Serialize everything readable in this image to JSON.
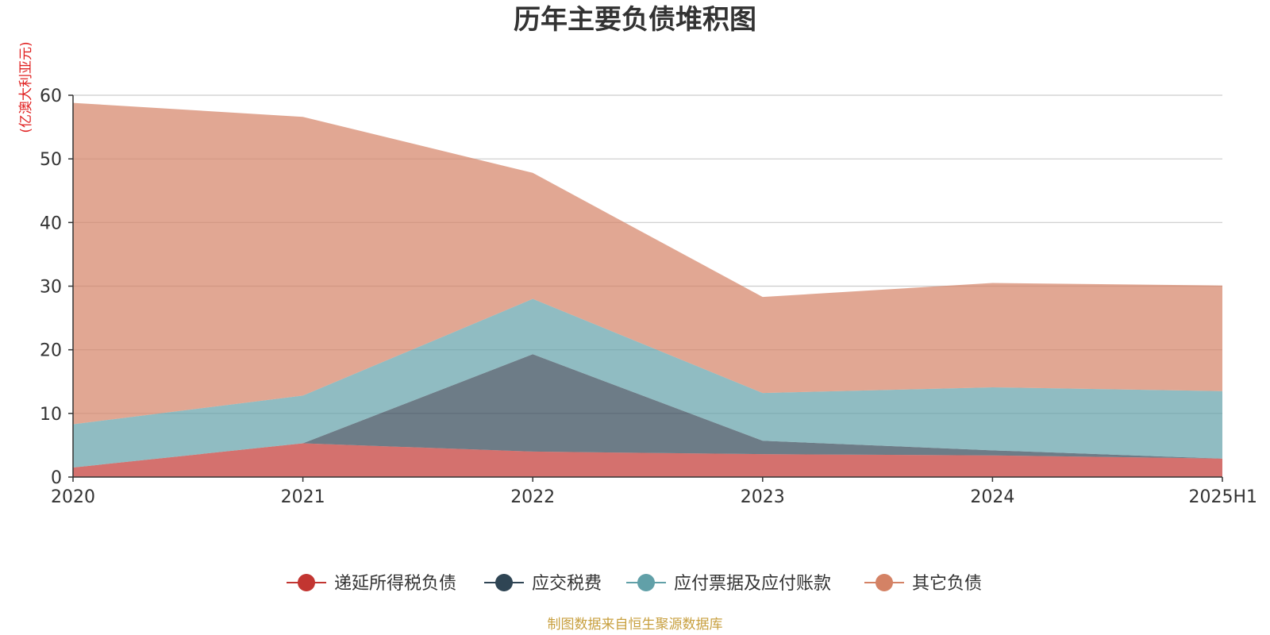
{
  "colors": {
    "deferred_tax": "#c23531",
    "tax_payable": "#2f4554",
    "payables": "#61a0a8",
    "other": "#d48265",
    "axis": "#333333",
    "grid": "#cccccc",
    "unit_label": "#e02020",
    "source": "#c8a040"
  },
  "chart_data": {
    "type": "area",
    "stacked": true,
    "title": "历年主要负债堆积图",
    "ylabel": "(亿澳大利亚元)",
    "xlabel": "",
    "categories": [
      "2020",
      "2021",
      "2022",
      "2023",
      "2024",
      "2025H1"
    ],
    "ylim": [
      0,
      60
    ],
    "yticks": [
      0,
      10,
      20,
      30,
      40,
      50,
      60
    ],
    "grid": true,
    "legend_position": "bottom-center",
    "series": [
      {
        "name": "递延所得税负债",
        "color_key": "deferred_tax",
        "values": [
          1.5,
          5.3,
          4.0,
          3.6,
          3.4,
          2.9
        ]
      },
      {
        "name": "应交税费",
        "color_key": "tax_payable",
        "values": [
          0.0,
          0.0,
          15.3,
          2.1,
          0.8,
          0.0
        ]
      },
      {
        "name": "应付票据及应付账款",
        "color_key": "payables",
        "values": [
          6.8,
          7.5,
          8.7,
          7.5,
          9.9,
          10.6
        ]
      },
      {
        "name": "其它负债",
        "color_key": "other",
        "values": [
          50.5,
          43.8,
          19.8,
          15.1,
          16.4,
          16.6
        ]
      }
    ]
  },
  "source": "制图数据来自恒生聚源数据库"
}
